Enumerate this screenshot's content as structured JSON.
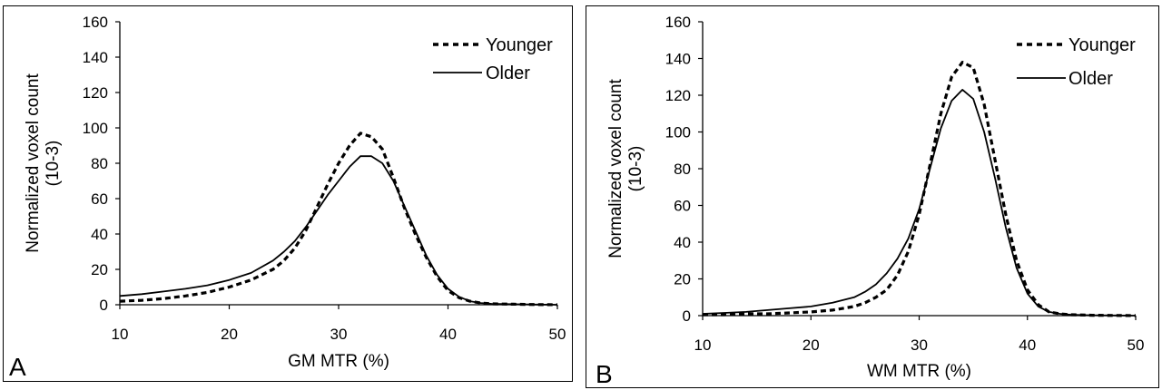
{
  "chart_data": [
    {
      "type": "line",
      "panel_label": "A",
      "xlabel": "GM MTR (%)",
      "ylabel": "Normalized voxel count",
      "ylabel_line2": "(10-3)",
      "xlim": [
        10,
        50
      ],
      "ylim": [
        0,
        160
      ],
      "xticks": [
        10,
        20,
        30,
        40,
        50
      ],
      "yticks": [
        0,
        20,
        40,
        60,
        80,
        100,
        120,
        140,
        160
      ],
      "grid": false,
      "legend_position": "top-right",
      "series": [
        {
          "name": "Younger",
          "style": "dashed",
          "x": [
            10,
            12,
            14,
            16,
            18,
            20,
            22,
            24,
            25,
            26,
            27,
            28,
            29,
            30,
            31,
            32,
            33,
            34,
            35,
            36,
            37,
            38,
            39,
            40,
            41,
            42,
            43,
            44,
            46,
            48,
            50
          ],
          "y": [
            2,
            2.5,
            3.5,
            5,
            7,
            10,
            14,
            20,
            25,
            32,
            42,
            55,
            68,
            80,
            90,
            97,
            95,
            88,
            72,
            55,
            40,
            27,
            16,
            8,
            4,
            2,
            1,
            0.5,
            0.3,
            0.1,
            0
          ]
        },
        {
          "name": "Older",
          "style": "solid",
          "x": [
            10,
            12,
            14,
            16,
            18,
            20,
            22,
            24,
            25,
            26,
            27,
            28,
            29,
            30,
            31,
            32,
            33,
            34,
            35,
            36,
            37,
            38,
            39,
            40,
            41,
            42,
            43,
            44,
            46,
            48,
            50
          ],
          "y": [
            5,
            6,
            7.5,
            9,
            11,
            14,
            18,
            25,
            30,
            36,
            44,
            53,
            62,
            70,
            78,
            84,
            84,
            80,
            70,
            56,
            42,
            28,
            17,
            9,
            4.5,
            2,
            1,
            0.5,
            0.3,
            0.1,
            0
          ]
        }
      ]
    },
    {
      "type": "line",
      "panel_label": "B",
      "xlabel": "WM MTR (%)",
      "ylabel": "Normalized voxel count",
      "ylabel_line2": "(10-3)",
      "xlim": [
        10,
        50
      ],
      "ylim": [
        0,
        160
      ],
      "xticks": [
        10,
        20,
        30,
        40,
        50
      ],
      "yticks": [
        0,
        20,
        40,
        60,
        80,
        100,
        120,
        140,
        160
      ],
      "grid": false,
      "legend_position": "top-right",
      "series": [
        {
          "name": "Younger",
          "style": "dashed",
          "x": [
            10,
            12,
            14,
            16,
            18,
            20,
            22,
            24,
            25,
            26,
            27,
            28,
            29,
            30,
            31,
            32,
            33,
            34,
            35,
            36,
            37,
            38,
            39,
            40,
            41,
            42,
            43,
            44,
            46,
            48,
            50
          ],
          "y": [
            0.5,
            0.5,
            1,
            1,
            1.5,
            2,
            3,
            5,
            7,
            10,
            14,
            22,
            35,
            55,
            82,
            110,
            130,
            138,
            135,
            115,
            85,
            55,
            30,
            14,
            6,
            2,
            1,
            0.5,
            0.2,
            0.1,
            0
          ]
        },
        {
          "name": "Older",
          "style": "solid",
          "x": [
            10,
            12,
            14,
            16,
            18,
            20,
            22,
            24,
            25,
            26,
            27,
            28,
            29,
            30,
            31,
            32,
            33,
            34,
            35,
            36,
            37,
            38,
            39,
            40,
            41,
            42,
            43,
            44,
            46,
            48,
            50
          ],
          "y": [
            1,
            1.5,
            2,
            3,
            4,
            5,
            7,
            10,
            13,
            17,
            23,
            31,
            42,
            58,
            80,
            102,
            117,
            123,
            118,
            100,
            75,
            48,
            26,
            12,
            5,
            2,
            1,
            0.5,
            0.2,
            0.1,
            0
          ]
        }
      ]
    }
  ]
}
